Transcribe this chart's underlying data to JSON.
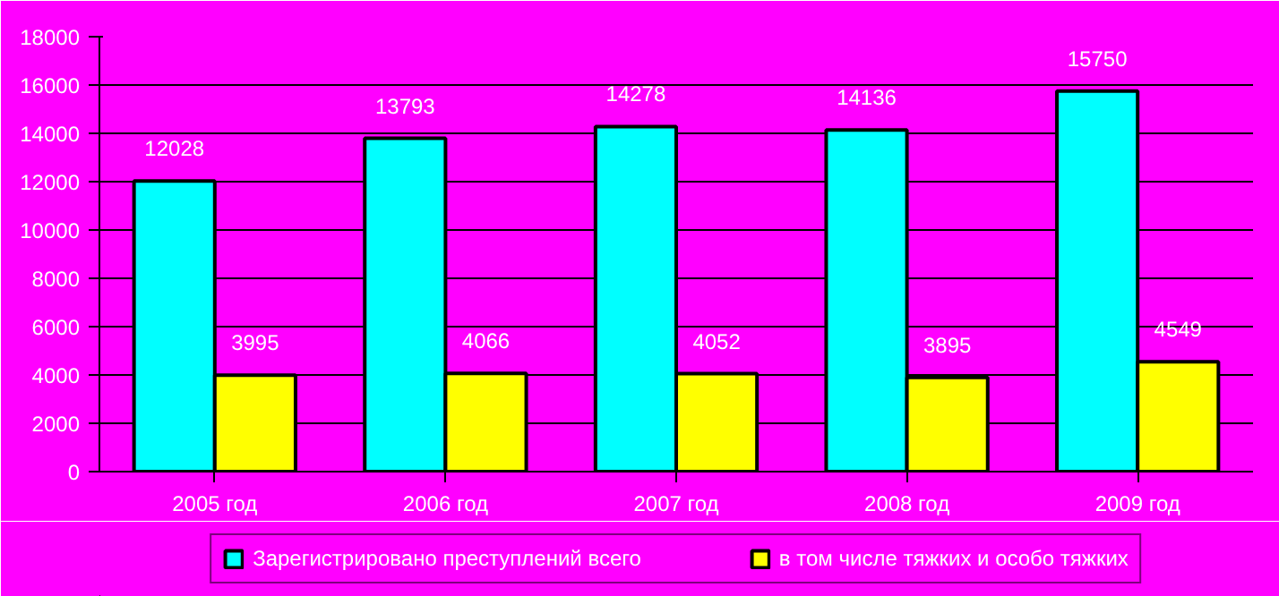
{
  "chart_data": {
    "type": "bar",
    "categories": [
      "2005 год",
      "2006 год",
      "2007 год",
      "2008 год",
      "2009 год"
    ],
    "series": [
      {
        "name": "Зарегистрировано преступлений всего",
        "color": "#00ffff",
        "values": [
          12028,
          13793,
          14278,
          14136,
          15750
        ]
      },
      {
        "name": "в том числе тяжких и особо тяжких",
        "color": "#ffff00",
        "values": [
          3995,
          4066,
          4052,
          3895,
          4549
        ]
      }
    ],
    "ylim": [
      0,
      18000
    ],
    "yticks": [
      0,
      2000,
      4000,
      6000,
      8000,
      10000,
      12000,
      14000,
      16000,
      18000
    ],
    "grid": "y",
    "legend": "bottom",
    "data_labels": true
  }
}
